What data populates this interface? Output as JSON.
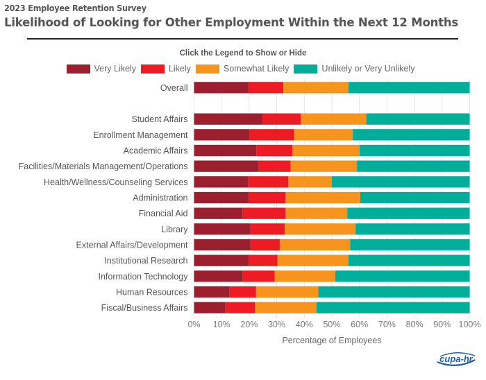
{
  "header": {
    "supertitle": "2023 Employee Retention Survey",
    "title": "Likelihood of Looking for Other Employment Within the Next 12 Months"
  },
  "legend": {
    "hint": "Click the Legend to Show or Hide",
    "placement": "top-center"
  },
  "logo": {
    "text": "cupa-hr"
  },
  "chart_data": {
    "type": "bar",
    "orientation": "horizontal",
    "stacked": true,
    "title": "Likelihood of Looking for Other Employment Within the Next 12 Months",
    "subtitle": "2023 Employee Retention Survey",
    "xlabel": "Percentage of Employees",
    "ylabel": "",
    "xlim": [
      0,
      100
    ],
    "x_ticks": [
      "0%",
      "10%",
      "20%",
      "30%",
      "40%",
      "50%",
      "60%",
      "70%",
      "80%",
      "90%",
      "100%"
    ],
    "grid": true,
    "legend_placement": "top-center",
    "categories": [
      "Overall",
      "",
      "Student Affairs",
      "Enrollment Management",
      "Academic Affairs",
      "Facilities/Materials Management/Operations",
      "Health/Wellness/Counseling Services",
      "Administration",
      "Financial Aid",
      "Library",
      "External Affairs/Development",
      "Institutional Research",
      "Information Technology",
      "Human Resources",
      "Fiscal/Business Affairs"
    ],
    "series": [
      {
        "name": "Very Likely",
        "color": "#9b1f2e",
        "values": [
          19.8,
          null,
          24.8,
          20.2,
          22.6,
          23.4,
          19.6,
          19.8,
          17.6,
          20.5,
          20.5,
          19.8,
          17.7,
          12.9,
          11.4
        ]
      },
      {
        "name": "Likely",
        "color": "#ed1c24",
        "values": [
          12.6,
          null,
          13.9,
          16.1,
          13.1,
          11.6,
          14.6,
          13.4,
          15.6,
          12.4,
          10.6,
          10.5,
          11.6,
          9.6,
          10.7
        ]
      },
      {
        "name": "Somewhat Likely",
        "color": "#f7941d",
        "values": [
          23.6,
          null,
          23.8,
          21.3,
          24.4,
          24.1,
          15.8,
          27.1,
          22.4,
          25.7,
          25.5,
          25.7,
          21.9,
          22.6,
          22.3
        ]
      },
      {
        "name": "Unlikely or Very Unlikely",
        "color": "#00ae9a",
        "values": [
          44.0,
          null,
          37.5,
          42.4,
          39.9,
          40.9,
          50.0,
          39.7,
          44.4,
          41.4,
          43.4,
          44.0,
          48.8,
          54.9,
          55.6
        ]
      }
    ]
  }
}
